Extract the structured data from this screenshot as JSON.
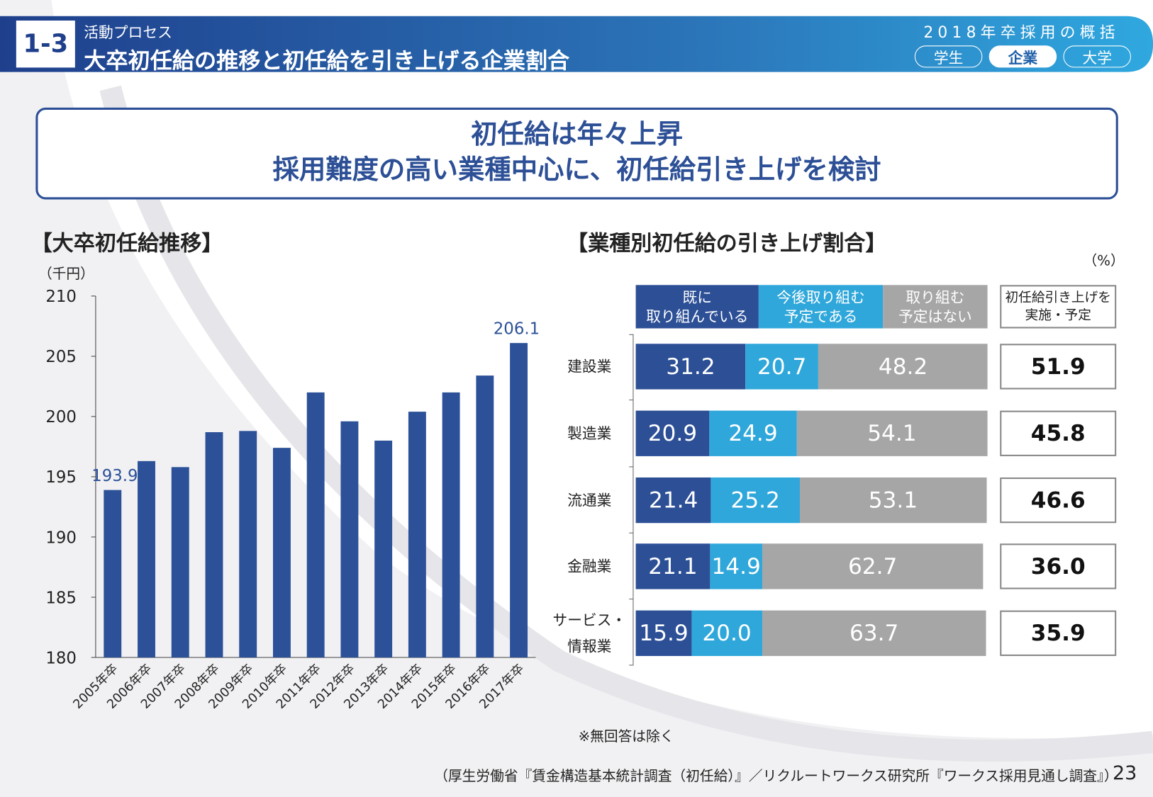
{
  "header": {
    "section": "1-3",
    "category": "活動プロセス",
    "title": "大卒初任給の推移と初任給を引き上げる企業割合",
    "series_title": "2018年卒採用の概括",
    "tabs": [
      "学生",
      "企業",
      "大学"
    ]
  },
  "headline": [
    "初任給は年々上昇",
    "採用難度の高い業種中心に、初任給引き上げを検討"
  ],
  "chart_data": [
    {
      "type": "bar",
      "title": "【大卒初任給推移】",
      "y_label": "（千円）",
      "categories": [
        "2005年卒",
        "2006年卒",
        "2007年卒",
        "2008年卒",
        "2009年卒",
        "2010年卒",
        "2011年卒",
        "2012年卒",
        "2013年卒",
        "2014年卒",
        "2015年卒",
        "2016年卒",
        "2017年卒"
      ],
      "values": [
        193.9,
        196.3,
        195.8,
        198.7,
        198.8,
        197.4,
        202.0,
        199.6,
        198.0,
        200.4,
        202.0,
        203.4,
        206.1
      ],
      "color": "#2c5198",
      "ylim": [
        180,
        210
      ],
      "yticks": [
        180,
        185,
        190,
        195,
        200,
        205,
        210
      ]
    },
    {
      "type": "stacked-bar-horizontal",
      "title": "【業種別初任給の引き上げ割合】",
      "unit": "（%）",
      "categories": [
        "建設業",
        "製造業",
        "流通業",
        "金融業",
        "サービス・\n情報業"
      ],
      "xlim": [
        0,
        100
      ],
      "series": [
        {
          "name": "既に\n取り組んでいる",
          "color": "#2c4f96",
          "values": [
            31.2,
            20.9,
            21.4,
            21.1,
            15.9
          ]
        },
        {
          "name": "今後取り組む\n予定である",
          "color": "#2fa7da",
          "values": [
            20.7,
            24.9,
            25.2,
            14.9,
            20.0
          ],
          "value_labels": [
            "20.7",
            "24.9",
            "25.2",
            "14.9",
            "20.0"
          ]
        },
        {
          "name": "取り組む\n予定はない",
          "color": "#a6a6a6",
          "values": [
            48.2,
            54.1,
            53.1,
            62.7,
            63.7
          ]
        }
      ],
      "total": {
        "name": "初任給引き上げを\n実施・予定",
        "values": [
          51.9,
          45.8,
          46.6,
          36.0,
          35.9
        ],
        "value_labels": [
          "51.9",
          "45.8",
          "46.6",
          "36.0",
          "35.9"
        ]
      }
    }
  ],
  "footnote": "※無回答は除く",
  "source": "（厚生労働省『賃金構造基本統計調査（初任給）』／リクルートワークス研究所『ワークス採用見通し調査』）",
  "page_number": "23"
}
